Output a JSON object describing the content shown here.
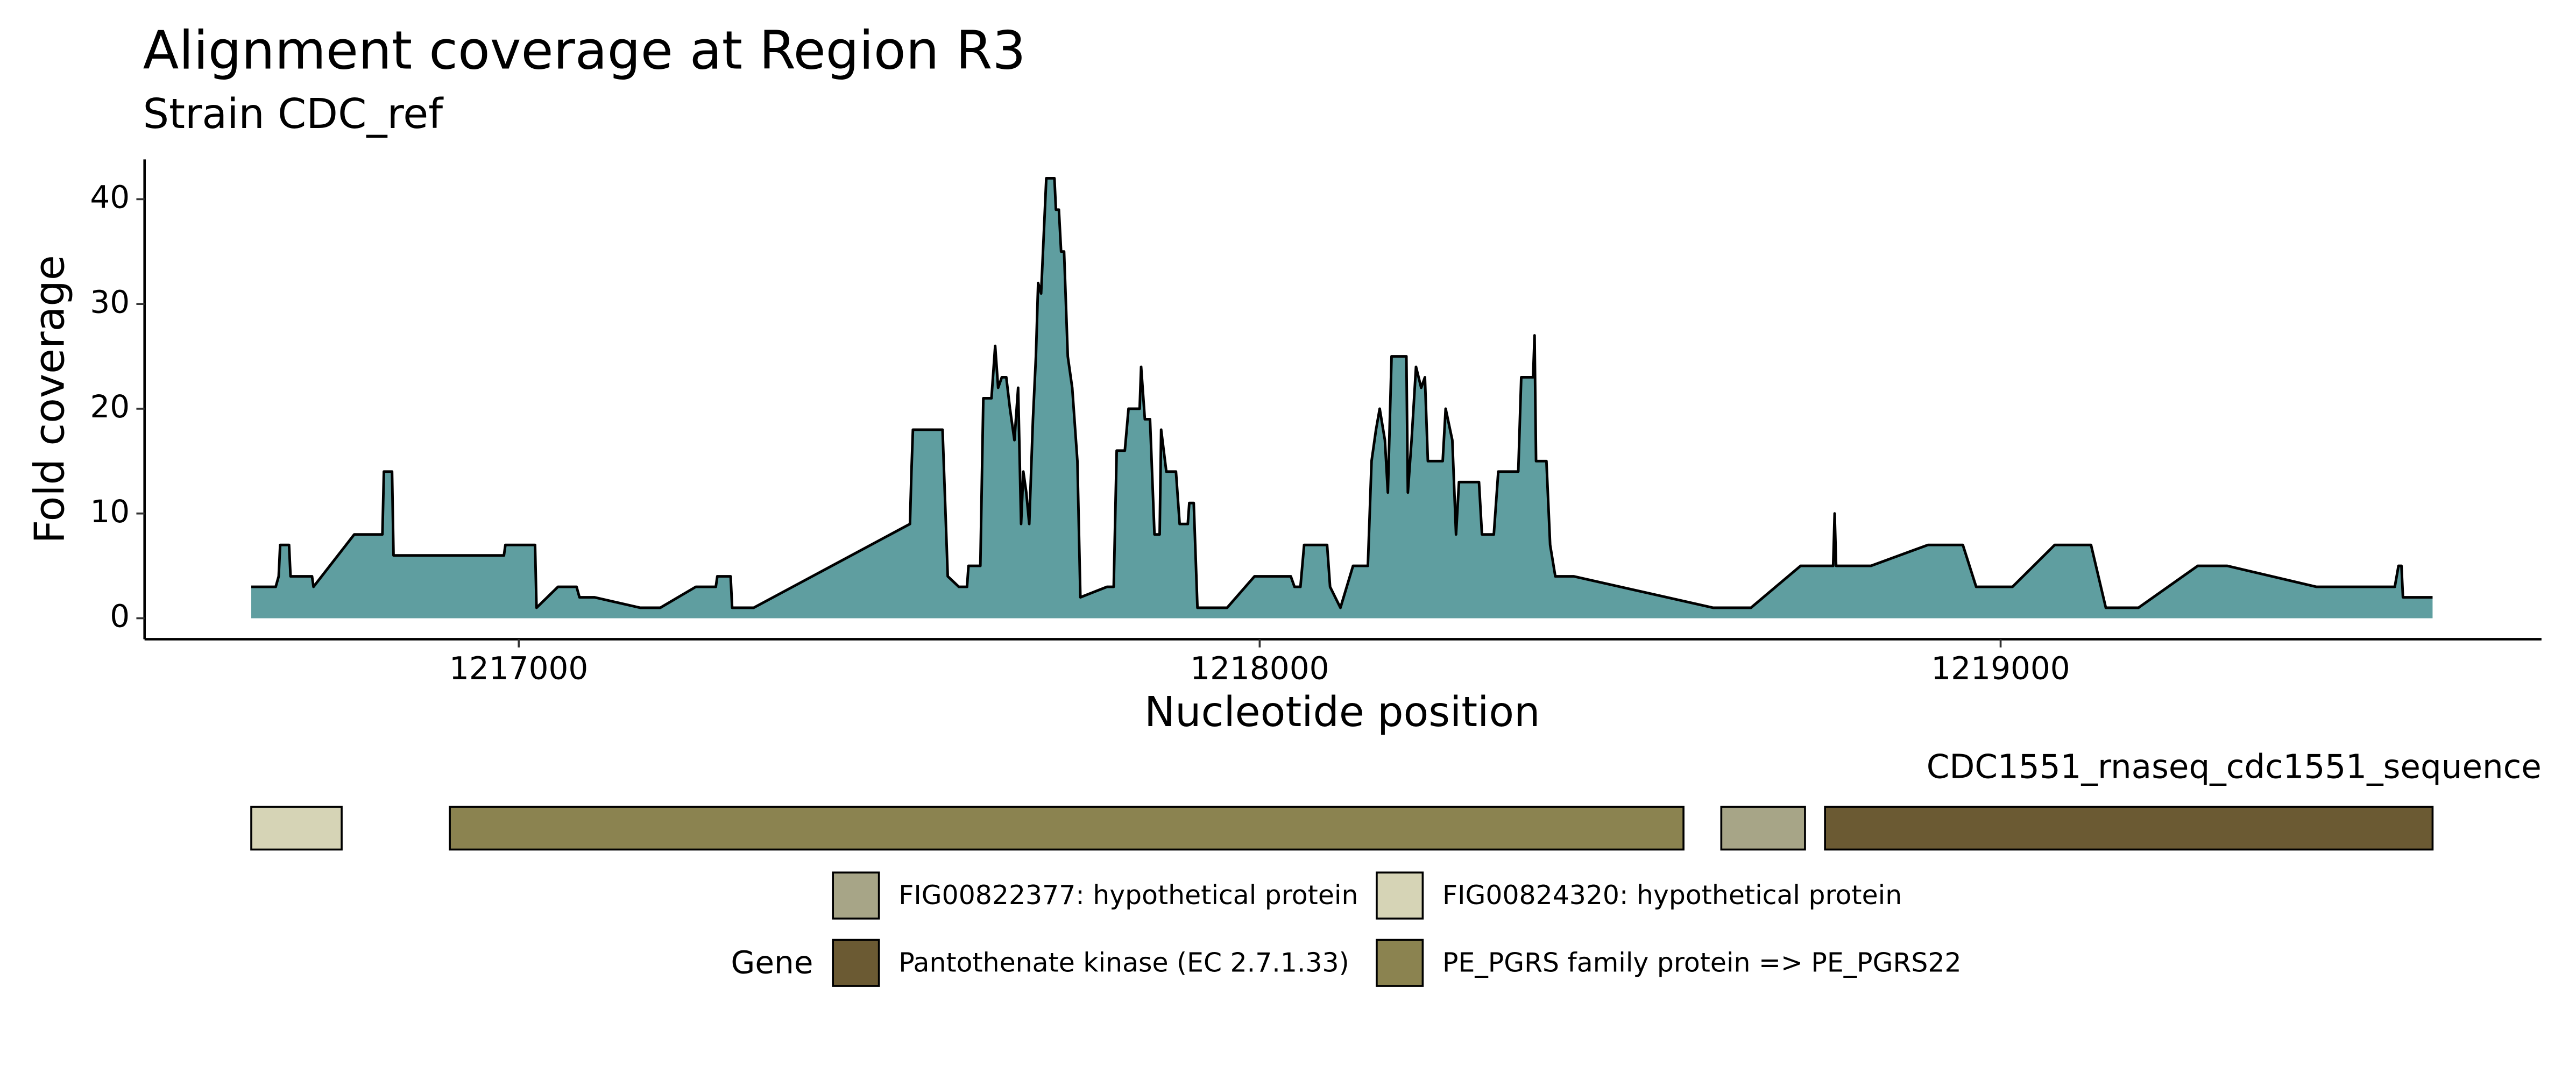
{
  "chart_data": {
    "type": "area",
    "title": "Alignment coverage at Region R3",
    "subtitle": "Strain CDC_ref",
    "x_label": "Nucleotide position",
    "y_label": "Fold coverage",
    "fill_color": "#5f9ea0",
    "line_color": "#000000",
    "xlim": [
      1216495,
      1219730
    ],
    "ylim": [
      -2,
      43.8
    ],
    "xticks": [
      1217000,
      1218000,
      1219000
    ],
    "yticks": [
      0,
      10,
      20,
      30,
      40
    ],
    "grid": false,
    "x": [
      1216639,
      1216672,
      1216676,
      1216678,
      1216690,
      1216692,
      1216721,
      1216723,
      1216778,
      1216816,
      1216818,
      1216829,
      1216831,
      1216980,
      1216982,
      1217022,
      1217024,
      1217053,
      1217078,
      1217082,
      1217102,
      1217164,
      1217191,
      1217239,
      1217266,
      1217268,
      1217286,
      1217288,
      1217317,
      1217528,
      1217530,
      1217532,
      1217572,
      1217579,
      1217594,
      1217605,
      1217607,
      1217623,
      1217627,
      1217638,
      1217643,
      1217647,
      1217652,
      1217658,
      1217663,
      1217669,
      1217674,
      1217678,
      1217681,
      1217685,
      1217689,
      1217694,
      1217698,
      1217701,
      1217705,
      1217712,
      1217723,
      1217725,
      1217729,
      1217732,
      1217736,
      1217741,
      1217747,
      1217754,
      1217758,
      1217794,
      1217803,
      1217807,
      1217818,
      1217823,
      1217838,
      1217840,
      1217845,
      1217852,
      1217858,
      1217865,
      1217867,
      1217874,
      1217887,
      1217892,
      1217903,
      1217905,
      1217911,
      1217916,
      1217956,
      1217993,
      1218042,
      1218047,
      1218055,
      1218060,
      1218091,
      1218095,
      1218102,
      1218109,
      1218126,
      1218146,
      1218151,
      1218157,
      1218162,
      1218169,
      1218173,
      1218178,
      1218198,
      1218200,
      1218205,
      1218211,
      1218218,
      1218223,
      1218227,
      1218247,
      1218251,
      1218260,
      1218265,
      1218269,
      1218296,
      1218300,
      1218316,
      1218322,
      1218349,
      1218353,
      1218369,
      1218371,
      1218373,
      1218387,
      1218392,
      1218399,
      1218424,
      1218612,
      1218663,
      1218730,
      1218774,
      1218776,
      1218778,
      1218825,
      1218902,
      1218949,
      1218967,
      1219016,
      1219073,
      1219122,
      1219142,
      1219186,
      1219266,
      1219306,
      1219426,
      1219532,
      1219537,
      1219541,
      1219543,
      1219583
    ],
    "y": [
      3,
      3,
      4,
      7,
      7,
      4,
      4,
      3,
      8,
      8,
      14,
      14,
      6,
      6,
      7,
      7,
      1,
      3,
      3,
      2,
      2,
      1,
      1,
      3,
      3,
      4,
      4,
      1,
      1,
      9,
      14,
      18,
      18,
      4,
      3,
      3,
      5,
      5,
      21,
      21,
      26,
      22,
      23,
      23,
      20,
      17,
      22,
      9,
      14,
      12,
      9,
      19,
      25,
      32,
      31,
      42,
      42,
      39,
      39,
      35,
      35,
      25,
      22,
      15,
      2,
      3,
      3,
      16,
      16,
      20,
      20,
      24,
      19,
      19,
      8,
      8,
      18,
      14,
      14,
      9,
      9,
      11,
      11,
      1,
      1,
      4,
      4,
      3,
      3,
      7,
      7,
      3,
      2,
      1,
      5,
      5,
      15,
      18,
      20,
      17,
      12,
      25,
      25,
      12,
      17,
      24,
      22,
      23,
      15,
      15,
      20,
      17,
      8,
      13,
      13,
      8,
      8,
      14,
      14,
      23,
      23,
      27,
      15,
      15,
      7,
      4,
      4,
      1,
      1,
      5,
      5,
      10,
      5,
      5,
      7,
      7,
      3,
      3,
      7,
      7,
      1,
      1,
      5,
      5,
      3,
      3,
      5,
      5,
      2,
      2
    ],
    "track_label": "CDC1551_rnaseq_cdc1551_sequence",
    "legend_title": "Gene",
    "genes": [
      {
        "name": "FIG00822377: hypothetical protein",
        "color": "#a7a587",
        "segments": [
          [
            1218623,
            1218736
          ]
        ]
      },
      {
        "name": "FIG00824320: hypothetical protein",
        "color": "#d6d4b6",
        "segments": [
          [
            1216639,
            1216761
          ]
        ]
      },
      {
        "name": "Pantothenate kinase (EC 2.7.1.33)",
        "color": "#6b5a33",
        "segments": [
          [
            1218763,
            1219583
          ]
        ]
      },
      {
        "name": "PE_PGRS family protein => PE_PGRS22",
        "color": "#8b8350",
        "segments": [
          [
            1216907,
            1218572
          ]
        ]
      }
    ]
  }
}
